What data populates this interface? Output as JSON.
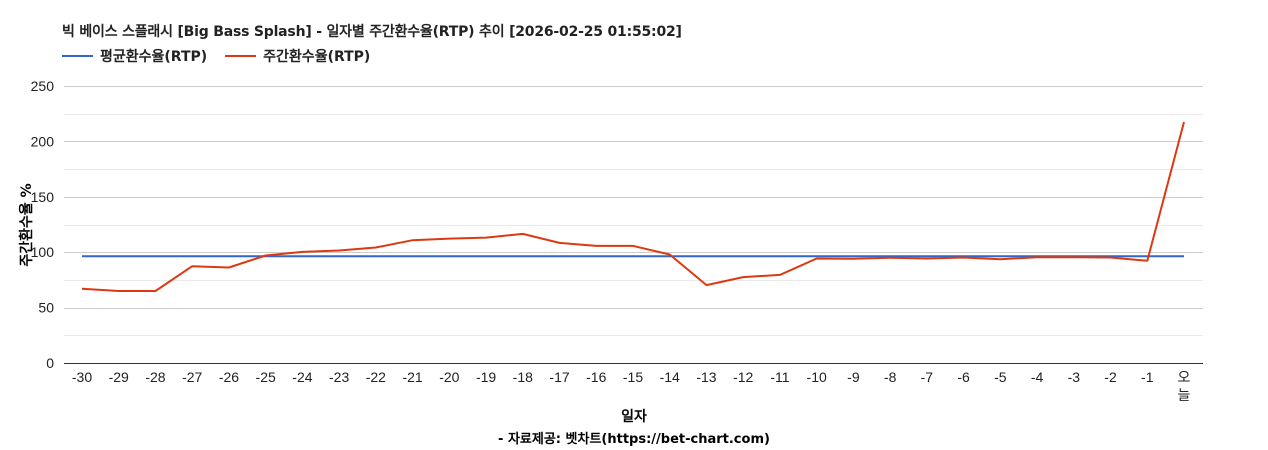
{
  "title": "빅 베이스 스플래시 [Big Bass Splash] - 일자별 주간환수율(RTP) 추이 [2026-02-25 01:55:02]",
  "legend": [
    {
      "label": "평균환수율(RTP)",
      "color": "#3366cc"
    },
    {
      "label": "주간환수율(RTP)",
      "color": "#dc3912"
    }
  ],
  "axes": {
    "x_title": "일자",
    "y_title": "주간환수율 %"
  },
  "source": "- 자료제공: 벳차트(https://bet-chart.com)",
  "chart_data": {
    "type": "line",
    "title": "빅 베이스 스플래시 [Big Bass Splash] - 일자별 주간환수율(RTP) 추이 [2026-02-25 01:55:02]",
    "xlabel": "일자",
    "ylabel": "주간환수율 %",
    "ylim": [
      0,
      250
    ],
    "yticks": [
      0,
      50,
      100,
      150,
      200,
      250
    ],
    "grid": true,
    "legend_position": "top",
    "categories": [
      "-30",
      "-29",
      "-28",
      "-27",
      "-26",
      "-25",
      "-24",
      "-23",
      "-22",
      "-21",
      "-20",
      "-19",
      "-18",
      "-17",
      "-16",
      "-15",
      "-14",
      "-13",
      "-12",
      "-11",
      "-10",
      "-9",
      "-8",
      "-7",
      "-6",
      "-5",
      "-4",
      "-3",
      "-2",
      "-1",
      "오늘"
    ],
    "series": [
      {
        "name": "평균환수율(RTP)",
        "color": "#3366cc",
        "values": [
          96.4,
          96.4,
          96.4,
          96.4,
          96.4,
          96.4,
          96.4,
          96.4,
          96.4,
          96.4,
          96.4,
          96.4,
          96.4,
          96.4,
          96.4,
          96.4,
          96.4,
          96.4,
          96.4,
          96.4,
          96.4,
          96.4,
          96.4,
          96.4,
          96.4,
          96.4,
          96.4,
          96.4,
          96.4,
          96.4,
          96.4
        ]
      },
      {
        "name": "주간환수율(RTP)",
        "color": "#dc3912",
        "values": [
          67,
          65,
          65,
          87.4,
          86.2,
          97,
          100.3,
          101.5,
          104.2,
          110.8,
          112.3,
          113.2,
          116.5,
          108.4,
          105.7,
          105.7,
          97.9,
          70.3,
          77.5,
          79.5,
          94.3,
          94,
          95,
          94.3,
          95.2,
          93.7,
          95.5,
          95.5,
          95.2,
          92.2,
          217.5
        ]
      }
    ]
  }
}
